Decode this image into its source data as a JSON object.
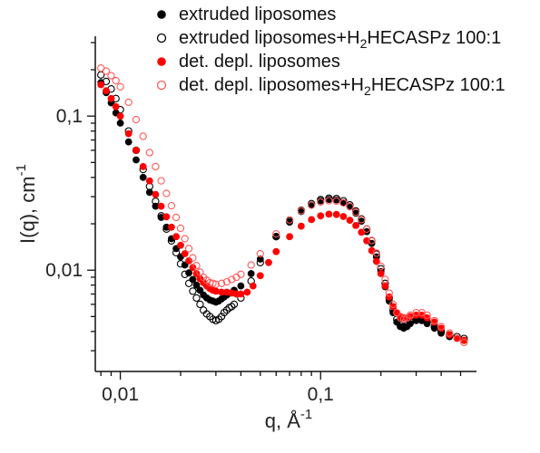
{
  "chart_data": {
    "type": "scatter",
    "x_scale": "log",
    "y_scale": "log",
    "xlim": [
      0.0075,
      0.6
    ],
    "ylim": [
      0.0022,
      0.33
    ],
    "xlabel": {
      "main": "q, Å",
      "sup": "-1"
    },
    "ylabel": {
      "main": "I(q), cm",
      "sup": "-1"
    },
    "x_ticks": [
      {
        "value": 0.01,
        "label": "0,01"
      },
      {
        "value": 0.1,
        "label": "0,1"
      }
    ],
    "y_ticks": [
      {
        "value": 0.01,
        "label": "0,01"
      },
      {
        "value": 0.1,
        "label": "0,1"
      }
    ],
    "legend_position": "top-right",
    "series": [
      {
        "name": "extruded liposomes",
        "name_parts": [
          "extruded liposomes"
        ],
        "marker": "filled-circle",
        "color": "#000000",
        "points": [
          [
            0.008,
            0.165
          ],
          [
            0.0085,
            0.142
          ],
          [
            0.009,
            0.122
          ],
          [
            0.0095,
            0.105
          ],
          [
            0.01,
            0.09
          ],
          [
            0.011,
            0.068
          ],
          [
            0.012,
            0.052
          ],
          [
            0.013,
            0.04
          ],
          [
            0.014,
            0.032
          ],
          [
            0.015,
            0.026
          ],
          [
            0.016,
            0.022
          ],
          [
            0.017,
            0.019
          ],
          [
            0.018,
            0.016
          ],
          [
            0.019,
            0.0138
          ],
          [
            0.02,
            0.0122
          ],
          [
            0.021,
            0.0108
          ],
          [
            0.022,
            0.0096
          ],
          [
            0.023,
            0.0087
          ],
          [
            0.024,
            0.008
          ],
          [
            0.025,
            0.0074
          ],
          [
            0.026,
            0.0069
          ],
          [
            0.027,
            0.0066
          ],
          [
            0.028,
            0.0064
          ],
          [
            0.029,
            0.0063
          ],
          [
            0.03,
            0.0062
          ],
          [
            0.031,
            0.0063
          ],
          [
            0.032,
            0.0065
          ],
          [
            0.033,
            0.0067
          ],
          [
            0.034,
            0.0069
          ],
          [
            0.035,
            0.0071
          ],
          [
            0.037,
            0.0074
          ],
          [
            0.04,
            0.0079
          ],
          [
            0.045,
            0.0095
          ],
          [
            0.05,
            0.0118
          ],
          [
            0.06,
            0.0165
          ],
          [
            0.07,
            0.0205
          ],
          [
            0.08,
            0.024
          ],
          [
            0.09,
            0.0265
          ],
          [
            0.1,
            0.0282
          ],
          [
            0.11,
            0.0288
          ],
          [
            0.12,
            0.0286
          ],
          [
            0.13,
            0.0275
          ],
          [
            0.14,
            0.0258
          ],
          [
            0.15,
            0.0234
          ],
          [
            0.16,
            0.0208
          ],
          [
            0.17,
            0.0178
          ],
          [
            0.18,
            0.0149
          ],
          [
            0.19,
            0.0122
          ],
          [
            0.2,
            0.0098
          ],
          [
            0.21,
            0.0078
          ],
          [
            0.22,
            0.0063
          ],
          [
            0.23,
            0.0053
          ],
          [
            0.24,
            0.0046
          ],
          [
            0.25,
            0.0043
          ],
          [
            0.26,
            0.0042
          ],
          [
            0.27,
            0.0043
          ],
          [
            0.28,
            0.0045
          ],
          [
            0.3,
            0.0047
          ],
          [
            0.32,
            0.0047
          ],
          [
            0.34,
            0.0045
          ],
          [
            0.37,
            0.0042
          ],
          [
            0.4,
            0.0039
          ],
          [
            0.44,
            0.0037
          ],
          [
            0.48,
            0.0036
          ],
          [
            0.52,
            0.0035
          ]
        ]
      },
      {
        "name": "extruded liposomes+H2HECASPz 100:1",
        "name_parts": [
          "extruded liposomes+H",
          "2",
          "HECASPz 100:1"
        ],
        "marker": "open-circle",
        "color": "#000000",
        "points": [
          [
            0.008,
            0.185
          ],
          [
            0.0085,
            0.168
          ],
          [
            0.009,
            0.15
          ],
          [
            0.0095,
            0.13
          ],
          [
            0.01,
            0.11
          ],
          [
            0.011,
            0.08
          ],
          [
            0.012,
            0.06
          ],
          [
            0.013,
            0.045
          ],
          [
            0.014,
            0.035
          ],
          [
            0.015,
            0.028
          ],
          [
            0.016,
            0.0225
          ],
          [
            0.017,
            0.0185
          ],
          [
            0.018,
            0.0155
          ],
          [
            0.019,
            0.013
          ],
          [
            0.02,
            0.011
          ],
          [
            0.021,
            0.0094
          ],
          [
            0.022,
            0.0082
          ],
          [
            0.023,
            0.0073
          ],
          [
            0.024,
            0.0066
          ],
          [
            0.025,
            0.006
          ],
          [
            0.026,
            0.0055
          ],
          [
            0.027,
            0.0052
          ],
          [
            0.028,
            0.005
          ],
          [
            0.029,
            0.0048
          ],
          [
            0.03,
            0.0047
          ],
          [
            0.031,
            0.0048
          ],
          [
            0.032,
            0.005
          ],
          [
            0.033,
            0.0053
          ],
          [
            0.034,
            0.0055
          ],
          [
            0.035,
            0.0057
          ],
          [
            0.036,
            0.0058
          ],
          [
            0.037,
            0.006
          ],
          [
            0.04,
            0.0066
          ],
          [
            0.045,
            0.0085
          ],
          [
            0.05,
            0.0112
          ],
          [
            0.06,
            0.0165
          ],
          [
            0.07,
            0.0208
          ],
          [
            0.08,
            0.0245
          ],
          [
            0.09,
            0.027
          ],
          [
            0.1,
            0.0287
          ],
          [
            0.11,
            0.0293
          ],
          [
            0.12,
            0.0292
          ],
          [
            0.13,
            0.0282
          ],
          [
            0.14,
            0.0265
          ],
          [
            0.15,
            0.0242
          ],
          [
            0.16,
            0.0215
          ],
          [
            0.17,
            0.0185
          ],
          [
            0.18,
            0.0155
          ],
          [
            0.19,
            0.0127
          ],
          [
            0.2,
            0.0102
          ],
          [
            0.21,
            0.0082
          ],
          [
            0.22,
            0.0066
          ],
          [
            0.23,
            0.0055
          ],
          [
            0.24,
            0.0048
          ],
          [
            0.25,
            0.0044
          ],
          [
            0.26,
            0.0043
          ],
          [
            0.27,
            0.0044
          ],
          [
            0.28,
            0.0046
          ],
          [
            0.3,
            0.0048
          ],
          [
            0.32,
            0.0048
          ],
          [
            0.34,
            0.0046
          ],
          [
            0.37,
            0.0043
          ],
          [
            0.4,
            0.004
          ],
          [
            0.44,
            0.0038
          ],
          [
            0.48,
            0.0037
          ],
          [
            0.52,
            0.0036
          ]
        ]
      },
      {
        "name": "det. depl. liposomes",
        "name_parts": [
          "det. depl. liposomes"
        ],
        "marker": "filled-circle",
        "color": "#ff0000",
        "points": [
          [
            0.008,
            0.16
          ],
          [
            0.0085,
            0.146
          ],
          [
            0.009,
            0.13
          ],
          [
            0.0095,
            0.115
          ],
          [
            0.01,
            0.1
          ],
          [
            0.011,
            0.077
          ],
          [
            0.012,
            0.06
          ],
          [
            0.013,
            0.047
          ],
          [
            0.014,
            0.038
          ],
          [
            0.015,
            0.031
          ],
          [
            0.016,
            0.026
          ],
          [
            0.017,
            0.0222
          ],
          [
            0.018,
            0.019
          ],
          [
            0.019,
            0.0165
          ],
          [
            0.02,
            0.0145
          ],
          [
            0.021,
            0.0128
          ],
          [
            0.022,
            0.0115
          ],
          [
            0.023,
            0.0104
          ],
          [
            0.024,
            0.0095
          ],
          [
            0.025,
            0.0088
          ],
          [
            0.026,
            0.0083
          ],
          [
            0.027,
            0.0079
          ],
          [
            0.028,
            0.0076
          ],
          [
            0.029,
            0.0074
          ],
          [
            0.03,
            0.0073
          ],
          [
            0.032,
            0.0072
          ],
          [
            0.034,
            0.0072
          ],
          [
            0.036,
            0.0071
          ],
          [
            0.038,
            0.007
          ],
          [
            0.04,
            0.007
          ],
          [
            0.043,
            0.0072
          ],
          [
            0.046,
            0.0079
          ],
          [
            0.05,
            0.0092
          ],
          [
            0.055,
            0.0112
          ],
          [
            0.06,
            0.0132
          ],
          [
            0.07,
            0.0165
          ],
          [
            0.08,
            0.0193
          ],
          [
            0.09,
            0.0213
          ],
          [
            0.1,
            0.0225
          ],
          [
            0.11,
            0.0231
          ],
          [
            0.12,
            0.023
          ],
          [
            0.13,
            0.0223
          ],
          [
            0.14,
            0.0211
          ],
          [
            0.15,
            0.0195
          ],
          [
            0.16,
            0.0176
          ],
          [
            0.17,
            0.0155
          ],
          [
            0.18,
            0.0134
          ],
          [
            0.19,
            0.0114
          ],
          [
            0.2,
            0.0095
          ],
          [
            0.21,
            0.0079
          ],
          [
            0.22,
            0.0067
          ],
          [
            0.23,
            0.0058
          ],
          [
            0.24,
            0.0053
          ],
          [
            0.25,
            0.005
          ],
          [
            0.26,
            0.0049
          ],
          [
            0.27,
            0.0049
          ],
          [
            0.28,
            0.005
          ],
          [
            0.3,
            0.0051
          ],
          [
            0.32,
            0.0051
          ],
          [
            0.34,
            0.0049
          ],
          [
            0.37,
            0.0046
          ],
          [
            0.4,
            0.0042
          ],
          [
            0.44,
            0.0038
          ],
          [
            0.48,
            0.0036
          ],
          [
            0.52,
            0.0035
          ]
        ]
      },
      {
        "name": "det. depl. liposomes+H2HECASPz 100:1",
        "name_parts": [
          "det. depl. liposomes+H",
          "2",
          "HECASPz 100:1"
        ],
        "marker": "open-circle",
        "color": "#ff5a5a",
        "points": [
          [
            0.008,
            0.205
          ],
          [
            0.0085,
            0.196
          ],
          [
            0.009,
            0.183
          ],
          [
            0.0095,
            0.17
          ],
          [
            0.01,
            0.155
          ],
          [
            0.011,
            0.123
          ],
          [
            0.012,
            0.095
          ],
          [
            0.013,
            0.074
          ],
          [
            0.014,
            0.058
          ],
          [
            0.015,
            0.047
          ],
          [
            0.016,
            0.038
          ],
          [
            0.017,
            0.0315
          ],
          [
            0.018,
            0.0262
          ],
          [
            0.019,
            0.022
          ],
          [
            0.02,
            0.0187
          ],
          [
            0.021,
            0.016
          ],
          [
            0.022,
            0.0138
          ],
          [
            0.023,
            0.012
          ],
          [
            0.024,
            0.0107
          ],
          [
            0.025,
            0.0097
          ],
          [
            0.026,
            0.009
          ],
          [
            0.027,
            0.0086
          ],
          [
            0.028,
            0.0083
          ],
          [
            0.029,
            0.0082
          ],
          [
            0.03,
            0.0081
          ],
          [
            0.032,
            0.0082
          ],
          [
            0.034,
            0.0084
          ],
          [
            0.036,
            0.0087
          ],
          [
            0.038,
            0.009
          ],
          [
            0.04,
            0.0094
          ],
          [
            0.045,
            0.0108
          ],
          [
            0.05,
            0.0128
          ],
          [
            0.06,
            0.0172
          ],
          [
            0.07,
            0.0212
          ],
          [
            0.08,
            0.0243
          ],
          [
            0.09,
            0.0264
          ],
          [
            0.1,
            0.0277
          ],
          [
            0.11,
            0.0282
          ],
          [
            0.12,
            0.0281
          ],
          [
            0.13,
            0.0273
          ],
          [
            0.14,
            0.0259
          ],
          [
            0.15,
            0.0238
          ],
          [
            0.16,
            0.0213
          ],
          [
            0.17,
            0.0185
          ],
          [
            0.18,
            0.0156
          ],
          [
            0.19,
            0.0129
          ],
          [
            0.2,
            0.0106
          ],
          [
            0.21,
            0.0087
          ],
          [
            0.22,
            0.0071
          ],
          [
            0.23,
            0.006
          ],
          [
            0.24,
            0.0053
          ],
          [
            0.25,
            0.0049
          ],
          [
            0.26,
            0.0048
          ],
          [
            0.27,
            0.0049
          ],
          [
            0.28,
            0.0051
          ],
          [
            0.3,
            0.0053
          ],
          [
            0.32,
            0.0053
          ],
          [
            0.34,
            0.0051
          ],
          [
            0.37,
            0.0047
          ],
          [
            0.4,
            0.0043
          ],
          [
            0.44,
            0.0039
          ],
          [
            0.48,
            0.0036
          ],
          [
            0.52,
            0.0034
          ]
        ]
      }
    ]
  }
}
